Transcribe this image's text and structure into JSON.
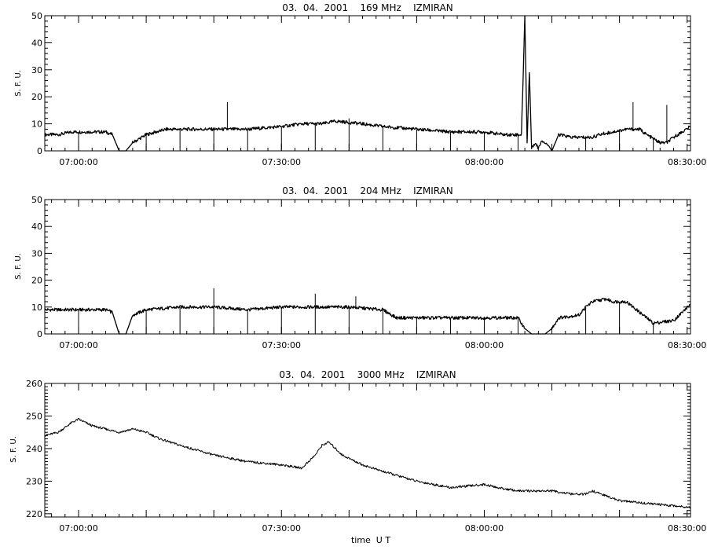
{
  "figure": {
    "xlabel": "time  U T"
  },
  "chart_data": [
    {
      "type": "line",
      "title": "03.  04.  2001    169 MHz    IZMIRAN",
      "ylabel": "S. F. U.",
      "xlim": [
        "06:55:00",
        "08:30:30"
      ],
      "ylim": [
        0,
        50
      ],
      "yticks": [
        0,
        10,
        20,
        30,
        40,
        50
      ],
      "xticks": [
        "07:00:00",
        "07:30:00",
        "08:00:00",
        "08:30:00"
      ],
      "grid": false,
      "series": [
        {
          "x": [
            "06:55:00",
            "06:57:00",
            "06:59:00",
            "07:01:00",
            "07:03:00",
            "07:04:00",
            "07:05:00",
            "07:06:00",
            "07:07:00",
            "07:08:00",
            "07:10:00",
            "07:13:00",
            "07:16:00",
            "07:20:00",
            "07:25:00",
            "07:30:00",
            "07:33:00",
            "07:36:00",
            "07:38:00",
            "07:42:00",
            "07:45:00",
            "07:50:00",
            "07:55:00",
            "08:00:00",
            "08:03:00",
            "08:05:30",
            "08:06:00",
            "08:06:20",
            "08:06:40",
            "08:07:00",
            "08:07:30",
            "08:08:00",
            "08:08:30",
            "08:09:30",
            "08:10:00",
            "08:11:00",
            "08:13:00",
            "08:16:00",
            "08:17:00",
            "08:19:00",
            "08:21:00",
            "08:22:00",
            "08:23:00",
            "08:24:00",
            "08:26:00",
            "08:27:00",
            "08:28:00",
            "08:30:30"
          ],
          "values": [
            6,
            6,
            7,
            7,
            7,
            7,
            6,
            0,
            0,
            3,
            6,
            8,
            8,
            8,
            8,
            9,
            10,
            10,
            11,
            10,
            9,
            8,
            7,
            7,
            6,
            6,
            50,
            3,
            29,
            1,
            3,
            1,
            4,
            2,
            0,
            6,
            5,
            5,
            6,
            7,
            8,
            8,
            8,
            6,
            3,
            3,
            5,
            9
          ]
        }
      ],
      "spikes": [
        {
          "x": "07:22:00",
          "top": 18
        },
        {
          "x": "07:40:00",
          "top": 12
        },
        {
          "x": "08:22:00",
          "top": 18
        },
        {
          "x": "08:27:00",
          "top": 17
        }
      ],
      "dips": [
        "07:00:00",
        "07:10:00",
        "07:15:00",
        "07:20:00",
        "07:25:00",
        "07:30:00",
        "07:35:00",
        "07:40:00",
        "07:45:00",
        "07:50:00",
        "07:55:00",
        "08:00:00",
        "08:05:00",
        "08:10:00",
        "08:15:00",
        "08:20:00",
        "08:25:00"
      ]
    },
    {
      "type": "line",
      "title": "03.  04.  2001    204 MHz    IZMIRAN",
      "ylabel": "S. F. U.",
      "xlim": [
        "06:55:00",
        "08:30:30"
      ],
      "ylim": [
        0,
        50
      ],
      "yticks": [
        0,
        10,
        20,
        30,
        40,
        50
      ],
      "xticks": [
        "07:00:00",
        "07:30:00",
        "08:00:00",
        "08:30:00"
      ],
      "grid": false,
      "series": [
        {
          "x": [
            "06:55:00",
            "07:00:00",
            "07:04:00",
            "07:05:00",
            "07:06:00",
            "07:07:00",
            "07:08:00",
            "07:10:00",
            "07:15:00",
            "07:20:00",
            "07:25:00",
            "07:30:00",
            "07:35:00",
            "07:40:00",
            "07:45:00",
            "07:47:00",
            "07:50:00",
            "07:55:00",
            "08:00:00",
            "08:05:00",
            "08:06:00",
            "08:07:00",
            "08:09:00",
            "08:10:00",
            "08:11:00",
            "08:14:00",
            "08:15:00",
            "08:16:00",
            "08:18:00",
            "08:19:00",
            "08:21:00",
            "08:23:00",
            "08:25:00",
            "08:28:00",
            "08:30:30"
          ],
          "values": [
            9,
            9,
            9,
            8,
            0,
            0,
            7,
            9,
            10,
            10,
            9,
            10,
            10,
            10,
            9,
            6,
            6,
            6,
            6,
            6,
            2,
            0,
            0,
            2,
            6,
            7,
            10,
            12,
            13,
            12,
            12,
            8,
            4,
            5,
            11
          ]
        }
      ],
      "spikes": [
        {
          "x": "07:20:00",
          "top": 17
        },
        {
          "x": "07:35:00",
          "top": 15
        },
        {
          "x": "07:41:00",
          "top": 14
        }
      ],
      "dips": [
        "07:00:00",
        "07:10:00",
        "07:15:00",
        "07:20:00",
        "07:25:00",
        "07:30:00",
        "07:35:00",
        "07:40:00",
        "07:45:00",
        "07:50:00",
        "07:55:00",
        "08:00:00",
        "08:05:00",
        "08:15:00",
        "08:20:00",
        "08:25:00"
      ]
    },
    {
      "type": "line",
      "title": "03.  04.  2001    3000 MHz    IZMIRAN",
      "ylabel": "S. F. U.",
      "xlim": [
        "06:55:00",
        "08:30:30"
      ],
      "ylim": [
        219,
        260
      ],
      "yticks": [
        220,
        230,
        240,
        250,
        260
      ],
      "xticks": [
        "07:00:00",
        "07:30:00",
        "08:00:00",
        "08:30:00"
      ],
      "grid": false,
      "series": [
        {
          "x": [
            "06:55:00",
            "06:57:00",
            "06:59:00",
            "07:00:00",
            "07:02:00",
            "07:04:00",
            "07:06:00",
            "07:08:00",
            "07:10:00",
            "07:12:00",
            "07:15:00",
            "07:20:00",
            "07:25:00",
            "07:30:00",
            "07:33:00",
            "07:35:00",
            "07:36:00",
            "07:37:00",
            "07:39:00",
            "07:42:00",
            "07:45:00",
            "07:50:00",
            "07:55:00",
            "08:00:00",
            "08:02:00",
            "08:05:00",
            "08:10:00",
            "08:13:00",
            "08:15:00",
            "08:16:00",
            "08:20:00",
            "08:25:00",
            "08:30:30"
          ],
          "values": [
            244,
            245,
            248,
            249,
            247,
            246,
            245,
            246,
            245,
            243,
            241,
            238,
            236,
            235,
            234,
            238,
            241,
            242,
            238,
            235,
            233,
            230,
            228,
            229,
            228,
            227,
            227,
            226,
            226,
            227,
            224,
            223,
            222
          ]
        }
      ],
      "spikes": [],
      "dips": []
    }
  ]
}
